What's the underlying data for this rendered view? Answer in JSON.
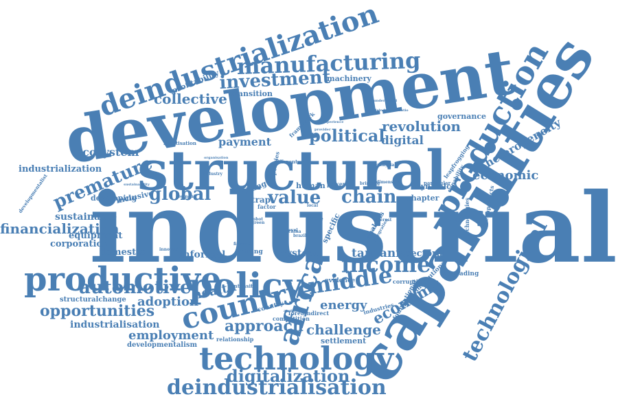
{
  "colors": {
    "word": "#4a7fb4",
    "background": "#ffffff"
  },
  "words": [
    {
      "text": "industrial",
      "weight": 100
    },
    {
      "text": "capabilities",
      "weight": 95
    },
    {
      "text": "development",
      "weight": 92
    },
    {
      "text": "structural",
      "weight": 85
    },
    {
      "text": "policy",
      "weight": 60
    },
    {
      "text": "productive",
      "weight": 60
    },
    {
      "text": "technology",
      "weight": 58
    },
    {
      "text": "production",
      "weight": 55
    },
    {
      "text": "deindustrialization",
      "weight": 50
    },
    {
      "text": "countrie",
      "weight": 50
    },
    {
      "text": "africa",
      "weight": 50
    },
    {
      "text": "technological",
      "weight": 45
    },
    {
      "text": "manufacturing",
      "weight": 40
    },
    {
      "text": "deindustrialisation",
      "weight": 40
    },
    {
      "text": "income",
      "weight": 40
    },
    {
      "text": "middle",
      "weight": 38
    },
    {
      "text": "investment",
      "weight": 32
    },
    {
      "text": "global",
      "weight": 32
    },
    {
      "text": "value",
      "weight": 32
    },
    {
      "text": "chain",
      "weight": 32
    },
    {
      "text": "premature",
      "weight": 30
    },
    {
      "text": "political",
      "weight": 30
    },
    {
      "text": "automotive",
      "weight": 30
    },
    {
      "text": "approach",
      "weight": 28
    },
    {
      "text": "digitalization",
      "weight": 28
    },
    {
      "text": "opportunities",
      "weight": 26
    },
    {
      "text": "economy",
      "weight": 26
    },
    {
      "text": "collective",
      "weight": 24
    },
    {
      "text": "financialization",
      "weight": 24
    },
    {
      "text": "revolution",
      "weight": 24
    },
    {
      "text": "challenge",
      "weight": 24
    },
    {
      "text": "economic",
      "weight": 22
    },
    {
      "text": "heterogeneity",
      "weight": 20
    },
    {
      "text": "energy",
      "weight": 20
    },
    {
      "text": "employment",
      "weight": 20
    },
    {
      "text": "adoption",
      "weight": 20
    },
    {
      "text": "health",
      "weight": 20
    },
    {
      "text": "tanzania",
      "weight": 20
    },
    {
      "text": "digital",
      "weight": 20
    },
    {
      "text": "payment",
      "weight": 18
    },
    {
      "text": "ecosystem",
      "weight": 18
    },
    {
      "text": "industrialisation",
      "weight": 18
    },
    {
      "text": "sustainable",
      "weight": 16
    },
    {
      "text": "industrialization",
      "weight": 16
    },
    {
      "text": "informal",
      "weight": 16
    },
    {
      "text": "system",
      "weight": 16
    },
    {
      "text": "sectoral",
      "weight": 16
    },
    {
      "text": "domestic",
      "weight": 15
    },
    {
      "text": "equipment",
      "weight": 15
    },
    {
      "text": "corporation",
      "weight": 15
    },
    {
      "text": "machinery",
      "weight": 14
    },
    {
      "text": "transition",
      "weight": 14
    },
    {
      "text": "governance",
      "weight": 14
    },
    {
      "text": "chapter",
      "weight": 14
    },
    {
      "text": "dynamic",
      "weight": 14
    },
    {
      "text": "profitability",
      "weight": 14
    },
    {
      "text": "developing",
      "weight": 14
    },
    {
      "text": "inclusive",
      "weight": 14
    },
    {
      "text": "structuralchange",
      "weight": 14
    },
    {
      "text": "developmentalism",
      "weight": 13
    },
    {
      "text": "settlement",
      "weight": 14
    },
    {
      "text": "relationship",
      "weight": 12
    },
    {
      "text": "country",
      "weight": 12
    },
    {
      "text": "foreigndirect",
      "weight": 12
    },
    {
      "text": "competition",
      "weight": 12
    },
    {
      "text": "evidence",
      "weight": 12
    },
    {
      "text": "upgrading",
      "weight": 12
    },
    {
      "text": "corruption",
      "weight": 12
    },
    {
      "text": "industries",
      "weight": 12
    },
    {
      "text": "foundational",
      "weight": 12
    },
    {
      "text": "institutional",
      "weight": 12
    },
    {
      "text": "mining",
      "weight": 12
    },
    {
      "text": "intensity",
      "weight": 10
    },
    {
      "text": "specific",
      "weight": 12
    },
    {
      "text": "analysis",
      "weight": 12
    },
    {
      "text": "human",
      "weight": 12
    },
    {
      "text": "power",
      "weight": 10
    },
    {
      "text": "trap",
      "weight": 14
    },
    {
      "text": "change",
      "weight": 14
    },
    {
      "text": "factor",
      "weight": 10
    },
    {
      "text": "role",
      "weight": 10
    },
    {
      "text": "technologies",
      "weight": 10
    },
    {
      "text": "megaprojects",
      "weight": 10
    },
    {
      "text": "leapfrogging",
      "weight": 10
    },
    {
      "text": "capability",
      "weight": 10
    },
    {
      "text": "particular",
      "weight": 10
    },
    {
      "text": "robotisation",
      "weight": 10
    },
    {
      "text": "framework",
      "weight": 10
    },
    {
      "text": "different",
      "weight": 10
    },
    {
      "text": "policies",
      "weight": 10
    },
    {
      "text": "malaysia",
      "weight": 10
    },
    {
      "text": "brazil",
      "weight": 9
    },
    {
      "text": "china",
      "weight": 9
    },
    {
      "text": "developmentalist",
      "weight": 9
    },
    {
      "text": "innovation",
      "weight": 9
    },
    {
      "text": "finance",
      "weight": 9
    },
    {
      "text": "segment",
      "weight": 9
    },
    {
      "text": "industry",
      "weight": 9
    },
    {
      "text": "provider",
      "weight": 8
    },
    {
      "text": "experience",
      "weight": 8
    },
    {
      "text": "robot",
      "weight": 8
    },
    {
      "text": "green",
      "weight": 8
    },
    {
      "text": "sustainability",
      "weight": 8
    },
    {
      "text": "level",
      "weight": 8
    },
    {
      "text": "local",
      "weight": 8
    },
    {
      "text": "gvcs",
      "weight": 8
    },
    {
      "text": "bringing",
      "weight": 8
    },
    {
      "text": "dimension",
      "weight": 8
    },
    {
      "text": "interest",
      "weight": 8
    },
    {
      "text": "infrastructure",
      "weight": 8
    },
    {
      "text": "deindustrialisatio",
      "weight": 8
    },
    {
      "text": "organisation",
      "weight": 8
    },
    {
      "text": "undermined",
      "weight": 8
    },
    {
      "text": "analyse",
      "weight": 7
    },
    {
      "text": "integration",
      "weight": 7
    }
  ]
}
